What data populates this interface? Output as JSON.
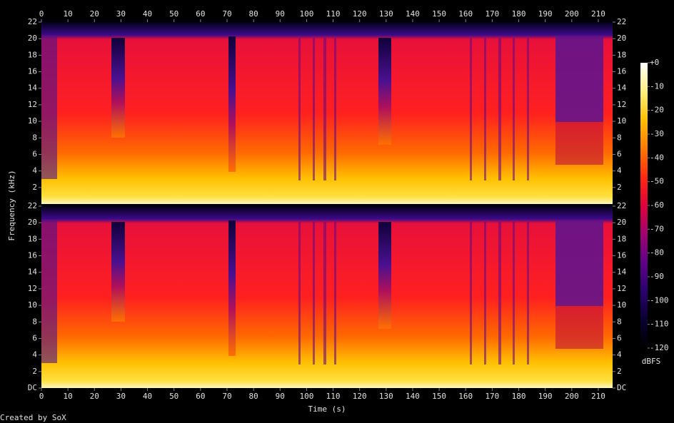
{
  "chart_data": {
    "type": "spectrogram",
    "xlabel": "Time (s)",
    "ylabel": "Frequency (kHz)",
    "xlim": [
      0,
      215.4
    ],
    "xticks": [
      0,
      10,
      20,
      30,
      40,
      50,
      60,
      70,
      80,
      90,
      100,
      110,
      120,
      130,
      140,
      150,
      160,
      170,
      180,
      190,
      200,
      210
    ],
    "panels": [
      {
        "ylim": [
          0,
          22
        ],
        "yticks": [
          2,
          4,
          6,
          8,
          10,
          12,
          14,
          16,
          18,
          20,
          22
        ]
      },
      {
        "ylim": [
          0,
          22
        ],
        "yticks": [
          {
            "value": 0,
            "label": "DC"
          },
          2,
          4,
          6,
          8,
          10,
          12,
          14,
          16,
          18,
          20,
          22
        ]
      }
    ],
    "zlabel": "dBFS",
    "zlim": [
      -120,
      0
    ],
    "zticks": [
      {
        "value": 0,
        "label": "+0"
      },
      -10,
      -20,
      -30,
      -40,
      -50,
      -60,
      -70,
      -80,
      -90,
      -100,
      -110,
      -120
    ],
    "colormap": [
      "#ffffff",
      "#fff080",
      "#ffc000",
      "#ff7a00",
      "#ff2a10",
      "#e0003a",
      "#a00070",
      "#60008a",
      "#2a0070",
      "#0a0030",
      "#000000"
    ],
    "footer": "Created by SoX"
  }
}
